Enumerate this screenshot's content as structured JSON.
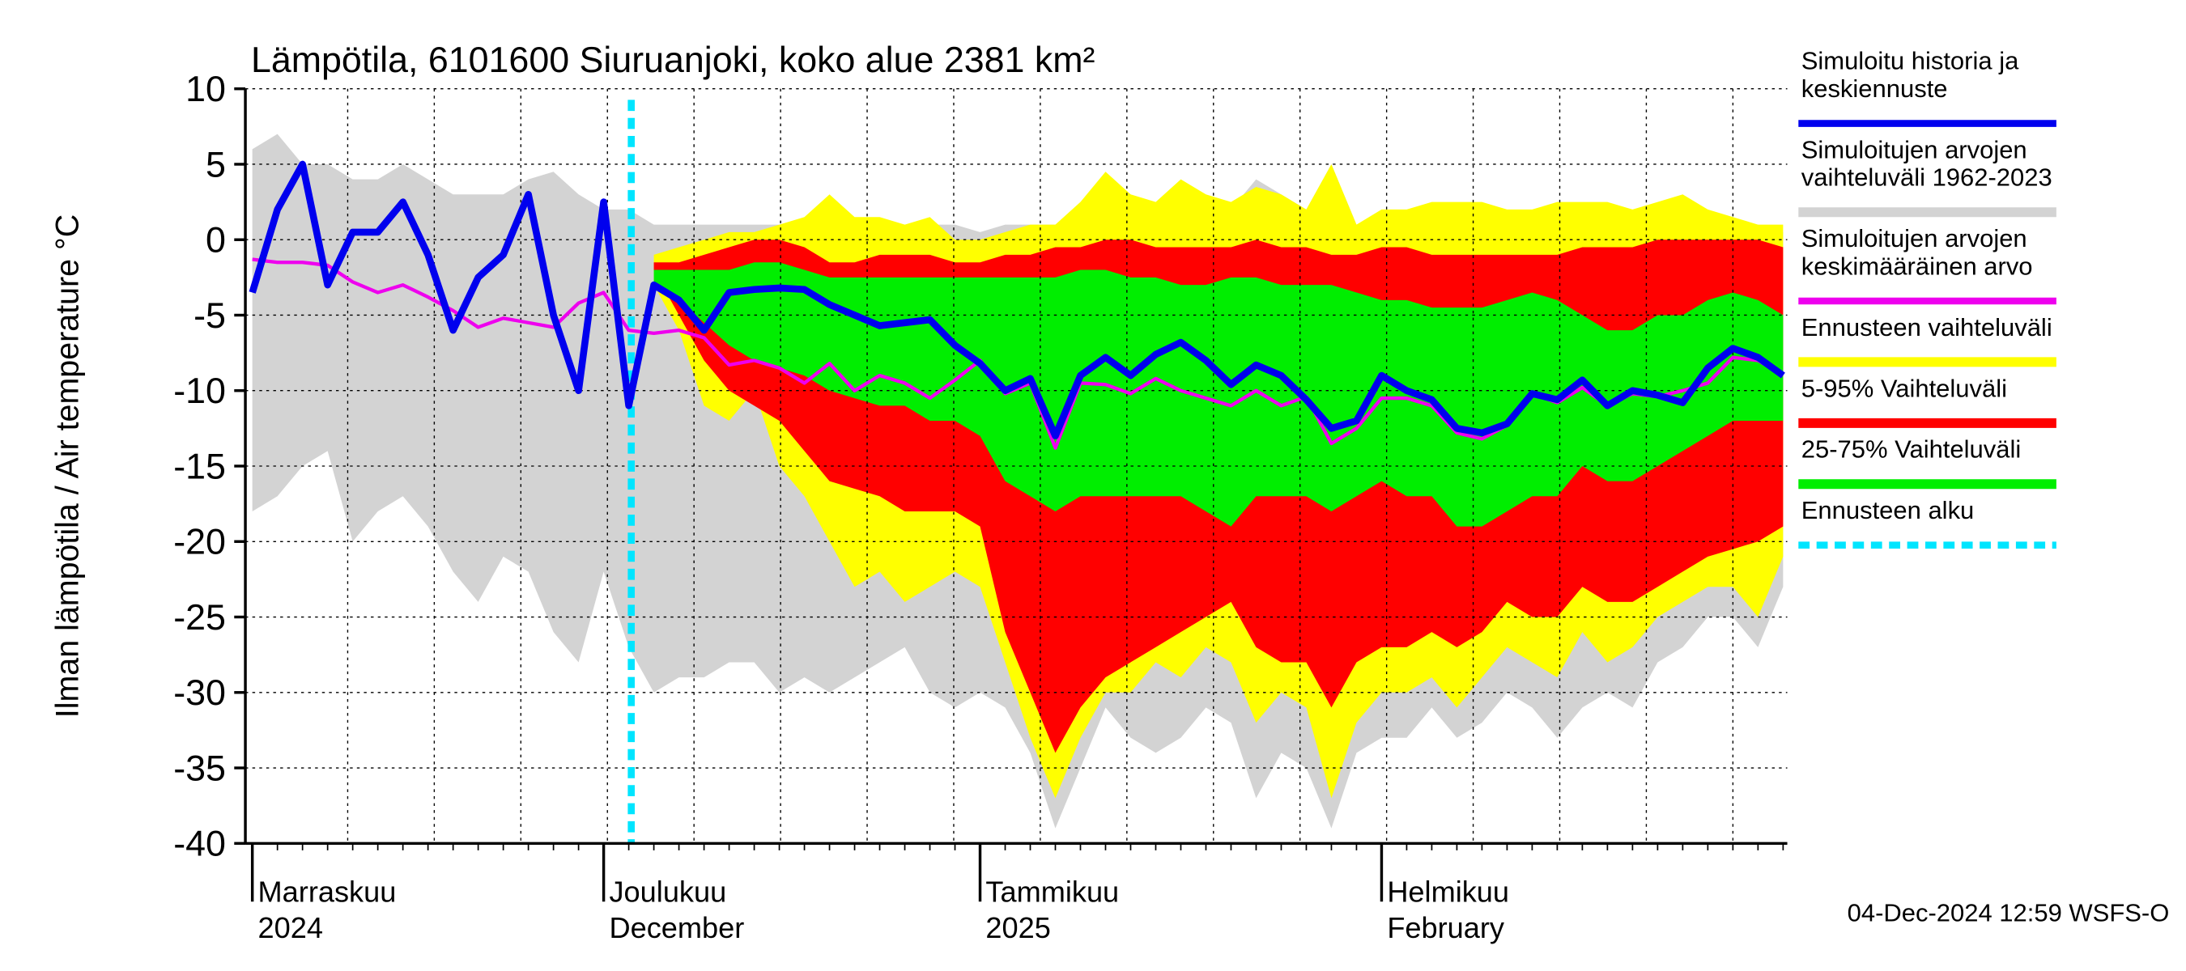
{
  "chart_data": {
    "type": "band-line",
    "title": "Lämpötila, 6101600 Siuruanjoki, koko alue 2381 km²",
    "y_label": "Ilman lämpötila / Air temperature   °C",
    "timestamp": "04-Dec-2024 12:59 WSFS-O",
    "ylim": [
      -40,
      10
    ],
    "yticks": [
      -40,
      -35,
      -30,
      -25,
      -20,
      -15,
      -10,
      -5,
      0,
      5,
      10
    ],
    "grid": true,
    "categories": [
      "Marraskuu\n2024",
      null,
      null,
      null,
      null,
      null,
      null,
      null,
      null,
      null,
      null,
      null,
      null,
      null,
      "Joulukuu\nDecember",
      null,
      null,
      null,
      null,
      null,
      null,
      null,
      null,
      null,
      null,
      null,
      null,
      null,
      null,
      "Tammikuu\n2025",
      null,
      null,
      null,
      null,
      null,
      null,
      null,
      null,
      null,
      null,
      null,
      null,
      null,
      null,
      null,
      "Helmikuu\nFebruary",
      null,
      null,
      null,
      null,
      null,
      null,
      null,
      null,
      null,
      null,
      null,
      null,
      null,
      null,
      null,
      null
    ],
    "series": [
      {
        "name": "Simuloitu historia ja\nkeskiennuste",
        "kind": "line",
        "color": "#0000ee",
        "values": [
          -3.5,
          2,
          5,
          -3,
          0.5,
          0.5,
          2.5,
          -1,
          -6,
          -2.5,
          -1,
          3,
          -5,
          -10,
          2.5,
          -11,
          -3,
          -4,
          -6,
          -3.5,
          -3.3,
          -3.2,
          -3.3,
          -4.3,
          -5,
          -5.7,
          -5.5,
          -5.3,
          -7,
          -8.2,
          -10,
          -9.2,
          -13,
          -9,
          -7.8,
          -9,
          -7.6,
          -6.8,
          -8,
          -9.6,
          -8.3,
          -9,
          -10.6,
          -12.5,
          -12,
          -9,
          -10,
          -10.6,
          -12.5,
          -12.8,
          -12.2,
          -10.2,
          -10.6,
          -9.3,
          -11,
          -10,
          -10.3,
          -10.8,
          -8.5,
          -7.2,
          -7.8,
          -9
        ]
      },
      {
        "name": "Simuloitujen arvojen\nvaihteluväli 1962-2023",
        "kind": "band",
        "color": "#d3d3d3",
        "high": [
          6,
          7,
          5,
          5,
          4,
          4,
          5,
          4,
          3,
          3,
          3,
          4,
          4.5,
          3,
          2,
          2,
          1,
          1,
          1,
          1,
          1,
          1,
          1,
          2,
          1,
          1,
          1,
          1,
          1,
          0.5,
          1,
          1,
          1,
          2,
          4,
          3,
          2,
          3.5,
          3,
          2,
          4,
          3,
          2,
          5,
          1,
          1,
          1.5,
          2,
          2,
          2,
          1.5,
          1,
          1.5,
          2,
          1.5,
          1,
          2,
          2.5,
          1.5,
          1,
          1,
          0.5
        ],
        "low": [
          -18,
          -17,
          -15,
          -14,
          -20,
          -18,
          -17,
          -19,
          -22,
          -24,
          -21,
          -22,
          -26,
          -28,
          -22,
          -27,
          -30,
          -29,
          -29,
          -28,
          -28,
          -30,
          -29,
          -30,
          -29,
          -28,
          -27,
          -30,
          -31,
          -30,
          -31,
          -34,
          -39,
          -35,
          -31,
          -33,
          -34,
          -33,
          -31,
          -32,
          -37,
          -34,
          -35,
          -39,
          -34,
          -33,
          -33,
          -31,
          -33,
          -32,
          -30,
          -31,
          -33,
          -31,
          -30,
          -31,
          -28,
          -27,
          -25,
          -25,
          -27,
          -23
        ]
      },
      {
        "name": "Simuloitujen arvojen\nkeskimääräinen arvo",
        "kind": "line",
        "color": "#ee00ee",
        "values": [
          -1.3,
          -1.5,
          -1.5,
          -1.7,
          -2.8,
          -3.5,
          -3,
          -3.8,
          -4.7,
          -5.8,
          -5.2,
          -5.5,
          -5.8,
          -4.2,
          -3.5,
          -6,
          -6.2,
          -6,
          -6.5,
          -8.3,
          -8,
          -8.5,
          -9.5,
          -8.2,
          -10,
          -9,
          -9.5,
          -10.5,
          -9.3,
          -8,
          -10.2,
          -9.5,
          -13.8,
          -9.5,
          -9.6,
          -10.2,
          -9.2,
          -10,
          -10.5,
          -11,
          -10,
          -11,
          -10.4,
          -13.5,
          -12.5,
          -10.5,
          -10.5,
          -11,
          -12.8,
          -13.2,
          -12.3,
          -10.2,
          -10.8,
          -9.8,
          -11,
          -10.2,
          -10.4,
          -10,
          -9.5,
          -7.8,
          -8,
          -9
        ]
      },
      {
        "name": "Ennusteen vaihteluväli",
        "kind": "band",
        "color": "#ffff00",
        "high": [
          null,
          null,
          null,
          null,
          null,
          null,
          null,
          null,
          null,
          null,
          null,
          null,
          null,
          null,
          null,
          null,
          -1,
          -0.5,
          0,
          0.5,
          0.5,
          1,
          1.5,
          3,
          1.5,
          1.5,
          1,
          1.5,
          0,
          0,
          0.5,
          1,
          1,
          2.5,
          4.5,
          3,
          2.5,
          4,
          3,
          2.5,
          3.5,
          3,
          2,
          5,
          1,
          2,
          2,
          2.5,
          2.5,
          2.5,
          2,
          2,
          2.5,
          2.5,
          2.5,
          2,
          2.5,
          3,
          2,
          1.5,
          1,
          1
        ],
        "low": [
          null,
          null,
          null,
          null,
          null,
          null,
          null,
          null,
          null,
          null,
          null,
          null,
          null,
          null,
          null,
          null,
          -3,
          -6,
          -11,
          -12,
          -10,
          -15,
          -17,
          -20,
          -23,
          -22,
          -24,
          -23,
          -22,
          -23,
          -28,
          -33,
          -37,
          -33,
          -30,
          -30,
          -28,
          -29,
          -27,
          -28,
          -32,
          -30,
          -31,
          -37,
          -32,
          -30,
          -30,
          -29,
          -31,
          -29,
          -27,
          -28,
          -29,
          -26,
          -28,
          -27,
          -25,
          -24,
          -23,
          -23,
          -25,
          -21
        ]
      },
      {
        "name": "5-95% Vaihteluväli",
        "kind": "band",
        "color": "#ff0000",
        "high": [
          null,
          null,
          null,
          null,
          null,
          null,
          null,
          null,
          null,
          null,
          null,
          null,
          null,
          null,
          null,
          null,
          -1.5,
          -1.5,
          -1,
          -0.5,
          0,
          0,
          -0.5,
          -1.5,
          -1.5,
          -1,
          -1,
          -1,
          -1.5,
          -1.5,
          -1,
          -1,
          -0.5,
          -0.5,
          0,
          0,
          -0.5,
          -0.5,
          -0.5,
          -0.5,
          0,
          -0.5,
          -0.5,
          -1,
          -1,
          -0.5,
          -0.5,
          -1,
          -1,
          -1,
          -1,
          -1,
          -1,
          -0.5,
          -0.5,
          -0.5,
          0,
          0,
          0,
          0,
          0,
          -0.5
        ],
        "low": [
          null,
          null,
          null,
          null,
          null,
          null,
          null,
          null,
          null,
          null,
          null,
          null,
          null,
          null,
          null,
          null,
          -2,
          -5,
          -8,
          -10,
          -11,
          -12,
          -14,
          -16,
          -16.5,
          -17,
          -18,
          -18,
          -18,
          -19,
          -26,
          -30,
          -34,
          -31,
          -29,
          -28,
          -27,
          -26,
          -25,
          -24,
          -27,
          -28,
          -28,
          -31,
          -28,
          -27,
          -27,
          -26,
          -27,
          -26,
          -24,
          -25,
          -25,
          -23,
          -24,
          -24,
          -23,
          -22,
          -21,
          -20.5,
          -20,
          -19
        ]
      },
      {
        "name": "25-75% Vaihteluväli",
        "kind": "band",
        "color": "#00ee00",
        "high": [
          null,
          null,
          null,
          null,
          null,
          null,
          null,
          null,
          null,
          null,
          null,
          null,
          null,
          null,
          null,
          null,
          -2,
          -2,
          -2,
          -2,
          -1.5,
          -1.5,
          -2,
          -2.5,
          -2.5,
          -2.5,
          -2.5,
          -2.5,
          -2.5,
          -2.5,
          -2.5,
          -2.5,
          -2.5,
          -2,
          -2,
          -2.5,
          -2.5,
          -3,
          -3,
          -2.5,
          -2.5,
          -3,
          -3,
          -3,
          -3.5,
          -4,
          -4,
          -4.5,
          -4.5,
          -4.5,
          -4,
          -3.5,
          -4,
          -5,
          -6,
          -6,
          -5,
          -5,
          -4,
          -3.5,
          -4,
          -5
        ],
        "low": [
          null,
          null,
          null,
          null,
          null,
          null,
          null,
          null,
          null,
          null,
          null,
          null,
          null,
          null,
          null,
          null,
          -3,
          -4,
          -5.5,
          -7,
          -8,
          -8.5,
          -9,
          -10,
          -10.5,
          -11,
          -11,
          -12,
          -12,
          -13,
          -16,
          -17,
          -18,
          -17,
          -17,
          -17,
          -17,
          -17,
          -18,
          -19,
          -17,
          -17,
          -17,
          -18,
          -17,
          -16,
          -17,
          -17,
          -19,
          -19,
          -18,
          -17,
          -17,
          -15,
          -16,
          -16,
          -15,
          -14,
          -13,
          -12,
          -12,
          -12
        ]
      }
    ],
    "forecast_start": {
      "name": "Ennusteen alku",
      "color": "#00e5ff",
      "index": 15.1
    }
  }
}
